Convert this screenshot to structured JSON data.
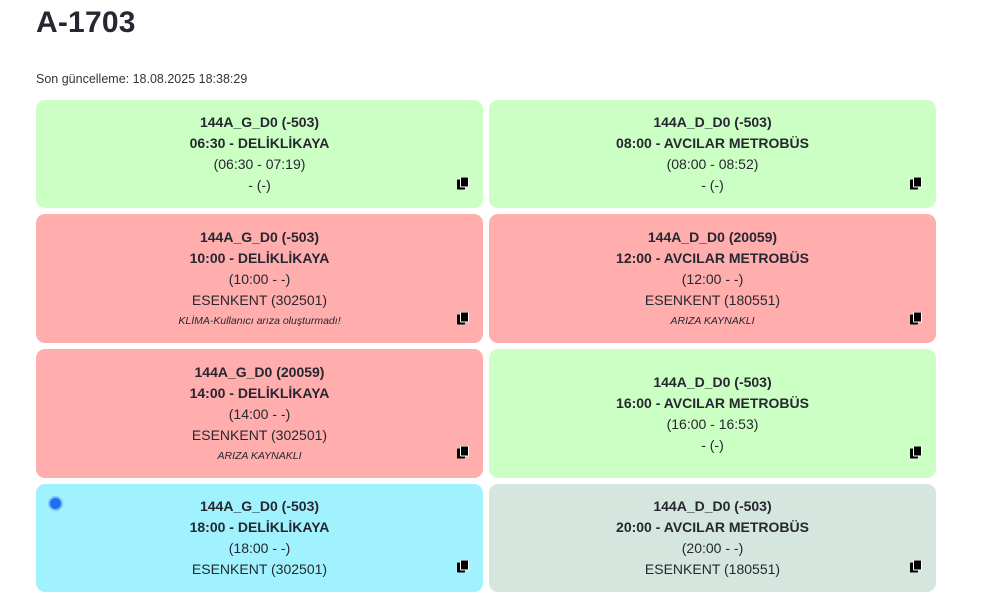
{
  "page": {
    "title": "A-1703",
    "last_update": "Son güncelleme: 18.08.2025 18:38:29"
  },
  "colors": {
    "green": "#ccffc4",
    "red": "#ffadad",
    "cyan": "#a0f2ff",
    "grey": "#d4e6dd"
  },
  "cards": [
    {
      "color": "green",
      "lines": [
        "144A_G_D0 (-503)",
        "06:30 - DELİKLİKAYA",
        "(06:30 - 07:19)",
        "- (-)"
      ],
      "note": "",
      "copy_icon": "copy-icon"
    },
    {
      "color": "green",
      "lines": [
        "144A_D_D0 (-503)",
        "08:00 - AVCILAR METROBÜS",
        "(08:00 - 08:52)",
        "- (-)"
      ],
      "note": "",
      "copy_icon": "copy-icon"
    },
    {
      "color": "red",
      "lines": [
        "144A_G_D0 (-503)",
        "10:00 - DELİKLİKAYA",
        "(10:00 - -)",
        "ESENKENT (302501)"
      ],
      "note": "KLİMA-Kullanıcı arıza oluşturmadı!",
      "copy_icon": "copy-icon"
    },
    {
      "color": "red",
      "lines": [
        "144A_D_D0 (20059)",
        "12:00 - AVCILAR METROBÜS",
        "(12:00 - -)",
        "ESENKENT (180551)"
      ],
      "note": "ARIZA KAYNAKLI",
      "copy_icon": "copy-icon"
    },
    {
      "color": "red",
      "lines": [
        "144A_G_D0 (20059)",
        "14:00 - DELİKLİKAYA",
        "(14:00 - -)",
        "ESENKENT (302501)"
      ],
      "note": "ARIZA KAYNAKLI",
      "copy_icon": "copy-icon"
    },
    {
      "color": "green",
      "lines": [
        "144A_D_D0 (-503)",
        "16:00 - AVCILAR METROBÜS",
        "(16:00 - 16:53)",
        "- (-)"
      ],
      "note": "",
      "copy_icon": "copy-icon"
    },
    {
      "color": "cyan",
      "lines": [
        "144A_G_D0 (-503)",
        "18:00 - DELİKLİKAYA",
        "(18:00 - -)",
        "ESENKENT (302501)"
      ],
      "note": "",
      "copy_icon": "copy-icon",
      "current_indicator": "current-dot"
    },
    {
      "color": "grey",
      "lines": [
        "144A_D_D0 (-503)",
        "20:00 - AVCILAR METROBÜS",
        "(20:00 - -)",
        "ESENKENT (180551)"
      ],
      "note": "",
      "copy_icon": "copy-icon"
    }
  ]
}
